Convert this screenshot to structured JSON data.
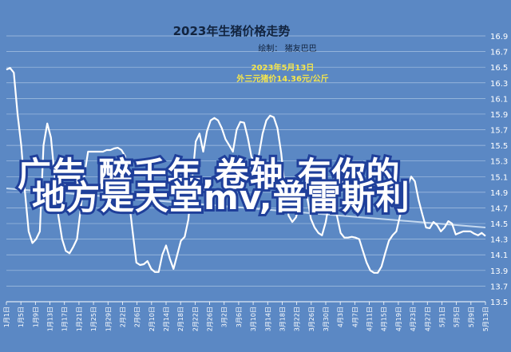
{
  "chart_data": {
    "type": "line",
    "title": "2023年生猪价格走势",
    "author": "绘制： 猪友巴巴",
    "annotation": {
      "line1": "2023年5月13日",
      "line2": "外三元猪价14.36元/公斤"
    },
    "overlay_text": {
      "line1": "广告  醉千年,卷轴,有你的",
      "line2": "地方是天堂mv,普雷斯利"
    },
    "yticks": [
      "16.9",
      "16.7",
      "16.5",
      "16.3",
      "16.1",
      "15.9",
      "15.7",
      "15.5",
      "15.3",
      "15.1",
      "14.9",
      "14.7",
      "14.5",
      "14.3",
      "14.1",
      "13.9",
      "13.7",
      "13.5"
    ],
    "ylim": [
      13.5,
      16.9
    ],
    "xticks": [
      "1月1日",
      "1月5日",
      "1月9日",
      "1月13日",
      "1月17日",
      "1月21日",
      "1月25日",
      "1月29日",
      "2月2日",
      "2月6日",
      "2月10日",
      "2月14日",
      "2月18日",
      "2月22日",
      "2月26日",
      "3月2日",
      "3月6日",
      "3月10日",
      "3月14日",
      "3月18日",
      "3月22日",
      "3月26日",
      "3月30日",
      "4月3日",
      "4月7日",
      "4月11日",
      "4月15日",
      "4月19日",
      "4月23日",
      "4月27日",
      "5月1日",
      "5月5日",
      "5月9日",
      "5月13日"
    ],
    "grid": true,
    "legend": "none",
    "colors": {
      "background": "#5b88c4",
      "line": "#ffffff",
      "trend": "#c4d8ef",
      "grid": "#a8c2e2",
      "callout": "#f6e64a",
      "title": "#12243f"
    },
    "series": [
      {
        "values": [
          16.47,
          16.49,
          16.43,
          15.9,
          15.5,
          14.9,
          14.4,
          14.25,
          14.3,
          14.4,
          15.5,
          15.78,
          15.6,
          15.1,
          14.6,
          14.3,
          14.15,
          14.12,
          14.2,
          14.3,
          14.68,
          15.12,
          15.42,
          15.42,
          15.42,
          15.42,
          15.42,
          15.44,
          15.44,
          15.46,
          15.47,
          15.44,
          15.36,
          14.8,
          14.4,
          14.0,
          13.97,
          13.98,
          14.02,
          13.92,
          13.88,
          13.88,
          14.1,
          14.22,
          14.05,
          13.92,
          14.1,
          14.28,
          14.33,
          14.55,
          15.05,
          15.55,
          15.65,
          15.42,
          15.68,
          15.82,
          15.85,
          15.82,
          15.72,
          15.58,
          15.5,
          15.42,
          15.7,
          15.8,
          15.79,
          15.6,
          15.35,
          15.3,
          15.38,
          15.65,
          15.82,
          15.88,
          15.86,
          15.72,
          15.4,
          14.95,
          14.6,
          14.52,
          14.58,
          14.78,
          14.85,
          14.84,
          14.56,
          14.45,
          14.38,
          14.35,
          14.52,
          14.8,
          14.82,
          14.6,
          14.38,
          14.32,
          14.32,
          14.33,
          14.32,
          14.3,
          14.15,
          14.0,
          13.9,
          13.87,
          13.87,
          13.95,
          14.12,
          14.28,
          14.35,
          14.4,
          14.6,
          14.8,
          14.98,
          15.1,
          15.04,
          14.8,
          14.62,
          14.45,
          14.44,
          14.52,
          14.48,
          14.4,
          14.45,
          14.53,
          14.5,
          14.36,
          14.38,
          14.4,
          14.4,
          14.4,
          14.37,
          14.35,
          14.38,
          14.34
        ]
      }
    ],
    "trend": [
      14.95,
      14.45
    ]
  }
}
